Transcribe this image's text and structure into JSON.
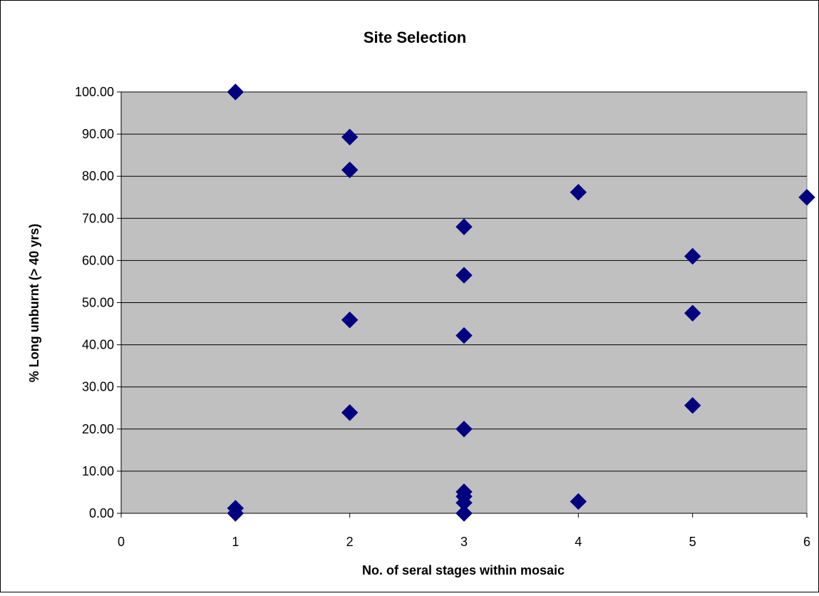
{
  "chart_data": {
    "type": "scatter",
    "title": "Site Selection",
    "xlabel": "No. of seral stages within mosaic",
    "ylabel": "% Long unburnt (> 40 yrs)",
    "xlim": [
      0,
      6
    ],
    "ylim": [
      0,
      100
    ],
    "x_ticks": [
      "0",
      "1",
      "2",
      "3",
      "4",
      "5",
      "6"
    ],
    "y_ticks": [
      "0.00",
      "10.00",
      "20.00",
      "30.00",
      "40.00",
      "50.00",
      "60.00",
      "70.00",
      "80.00",
      "90.00",
      "100.00"
    ],
    "grid": "horizontal",
    "legend": "none",
    "colors": {
      "plot_background": "#c0c0c0",
      "marker": "#000080",
      "gridline": "#000000"
    },
    "series": [
      {
        "marker": "diamond",
        "points": [
          {
            "x": 1,
            "y": 100.0
          },
          {
            "x": 1,
            "y": 1.2
          },
          {
            "x": 1,
            "y": 0.0
          },
          {
            "x": 2,
            "y": 89.3
          },
          {
            "x": 2,
            "y": 81.5
          },
          {
            "x": 2,
            "y": 45.9
          },
          {
            "x": 2,
            "y": 23.9
          },
          {
            "x": 3,
            "y": 68.0
          },
          {
            "x": 3,
            "y": 56.5
          },
          {
            "x": 3,
            "y": 42.2
          },
          {
            "x": 3,
            "y": 20.0
          },
          {
            "x": 3,
            "y": 5.1
          },
          {
            "x": 3,
            "y": 4.0
          },
          {
            "x": 3,
            "y": 2.5
          },
          {
            "x": 3,
            "y": 0.0
          },
          {
            "x": 4,
            "y": 76.2
          },
          {
            "x": 4,
            "y": 2.8
          },
          {
            "x": 5,
            "y": 61.0
          },
          {
            "x": 5,
            "y": 47.5
          },
          {
            "x": 5,
            "y": 25.6
          },
          {
            "x": 6,
            "y": 75.0
          }
        ]
      }
    ]
  }
}
